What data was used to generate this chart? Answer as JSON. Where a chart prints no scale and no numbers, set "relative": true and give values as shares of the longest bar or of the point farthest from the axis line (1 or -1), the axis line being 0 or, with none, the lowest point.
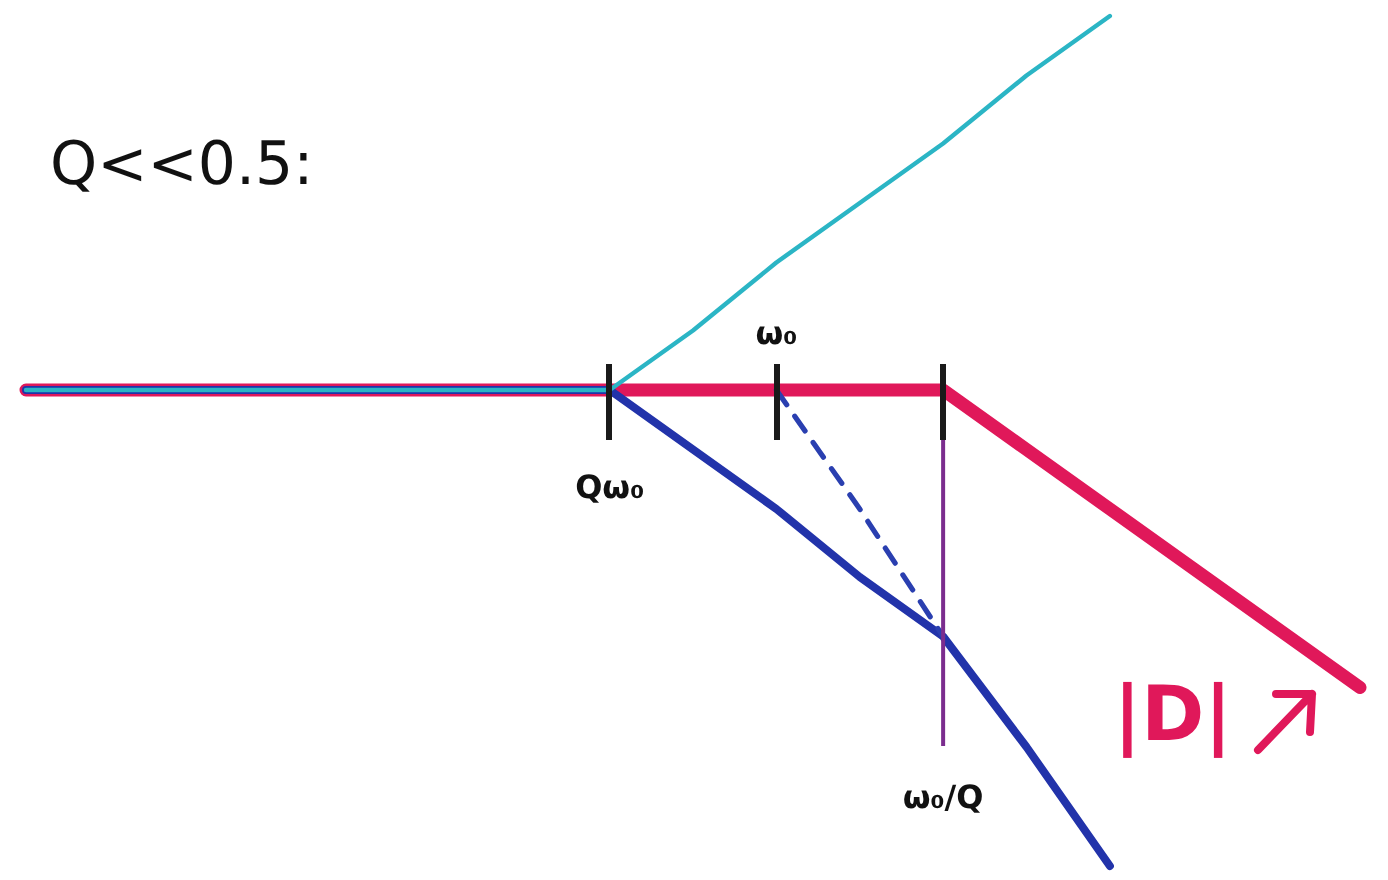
{
  "chart_data": {
    "type": "line",
    "title": "Q<<0.5:",
    "relative": true,
    "tick_labels": "x",
    "legend": "bottom right",
    "grid": false,
    "marker": "none",
    "categories": [
      null,
      null,
      null,
      null,
      null,
      null,
      null,
      "Qω₀",
      null,
      "ω₀",
      null,
      "ω₀/Q",
      null,
      null,
      null,
      null,
      null
    ],
    "series": [
      {
        "name": "|D|",
        "color": "#e0185a",
        "values": [
          0.56,
          0.56,
          0.56,
          0.56,
          0.56,
          0.56,
          0.56,
          0.56,
          0.56,
          0.56,
          0.56,
          0.56,
          0.49,
          0.42,
          0.35,
          0.28,
          0.21
        ]
      },
      {
        "color": "#2233aa",
        "values": [
          0.56,
          0.56,
          0.56,
          0.56,
          0.56,
          0.56,
          0.56,
          0.56,
          0.49,
          0.42,
          0.34,
          0.27,
          0.14,
          0,
          null,
          null,
          null
        ]
      },
      {
        "color": "#2bb5c5",
        "values": [
          0.56,
          0.56,
          0.56,
          0.56,
          0.56,
          0.56,
          0.56,
          0.56,
          0.63,
          0.71,
          0.78,
          0.85,
          0.93,
          1,
          null,
          null,
          null
        ]
      },
      {
        "color": "#2a3fb0",
        "line_style": "dashed",
        "values": [
          null,
          null,
          null,
          null,
          null,
          null,
          null,
          null,
          null,
          0.56,
          0.42,
          0.27,
          null,
          null,
          null,
          null,
          null
        ]
      }
    ],
    "ref_lines": [
      {
        "axis": "x",
        "value": "ω₀/Q",
        "color": "#7b2d8e"
      }
    ]
  }
}
